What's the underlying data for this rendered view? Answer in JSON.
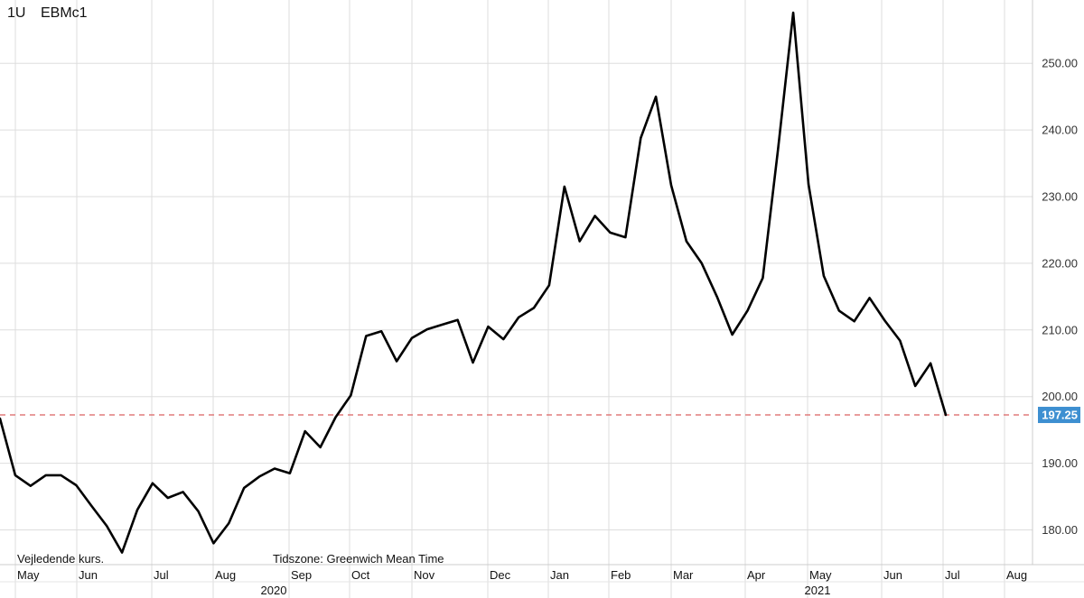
{
  "header": {
    "interval": "1U",
    "symbol": "EBMc1"
  },
  "notes": {
    "left": "Vejledende kurs.",
    "right": "Tidszone: Greenwich Mean Time"
  },
  "colors": {
    "line": "#000000",
    "grid": "#dddddd",
    "ref_line": "#e07b7b",
    "last_badge": "#3d8fd1"
  },
  "chart_data": {
    "type": "line",
    "title": "",
    "xlabel": "",
    "ylabel": "",
    "ylim": [
      174,
      260
    ],
    "y_ticks": [
      180,
      190,
      200,
      210,
      220,
      230,
      240,
      250
    ],
    "y_tick_labels": [
      "180.00",
      "190.00",
      "200.00",
      "210.00",
      "220.00",
      "230.00",
      "240.00",
      "250.00"
    ],
    "x_month_labels": [
      "May",
      "Jun",
      "Jul",
      "Aug",
      "Sep",
      "Oct",
      "Nov",
      "Dec",
      "Jan",
      "Feb",
      "Mar",
      "Apr",
      "May",
      "Jun",
      "Jul",
      "Aug"
    ],
    "x_year_labels": [
      "2020",
      "2021"
    ],
    "y_axis_side": "right",
    "grid": true,
    "last_value": 197.25,
    "last_value_label": "197.25",
    "series": [
      {
        "values": [
          196.7,
          188.2,
          186.6,
          188.2,
          188.2,
          186.7,
          183.6,
          180.6,
          176.6,
          183.0,
          187.0,
          184.8,
          185.7,
          182.8,
          178.0,
          181.0,
          186.3,
          188.0,
          189.2,
          188.5,
          194.8,
          192.4,
          196.9,
          200.2,
          209.1,
          209.8,
          205.3,
          208.8,
          210.1,
          210.8,
          211.5,
          205.1,
          210.5,
          208.6,
          211.9,
          213.3,
          216.7,
          231.5,
          223.3,
          227.1,
          224.6,
          223.9,
          238.8,
          245.0,
          231.7,
          223.3,
          220.0,
          215.0,
          209.3,
          212.9,
          217.8,
          237.0,
          257.6,
          231.9,
          218.1,
          212.9,
          211.3,
          214.8,
          211.4,
          208.4,
          201.6,
          205.0,
          197.25
        ]
      }
    ]
  }
}
